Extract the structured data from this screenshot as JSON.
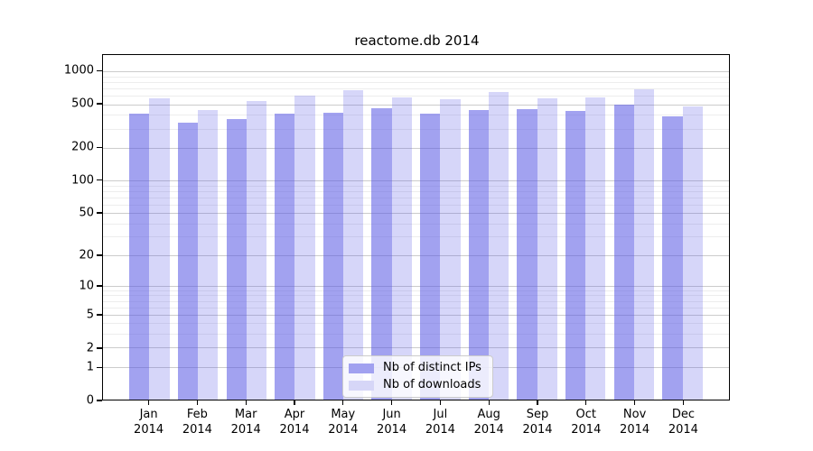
{
  "chart_data": {
    "type": "bar",
    "title": "reactome.db 2014",
    "categories": [
      "Jan",
      "Feb",
      "Mar",
      "Apr",
      "May",
      "Jun",
      "Jul",
      "Aug",
      "Sep",
      "Oct",
      "Nov",
      "Dec"
    ],
    "x_sublabel_year": "2014",
    "series": [
      {
        "name": "Nb of distinct IPs",
        "color_solid": "#a1a1f0",
        "color_fill": "rgba(85,85,228,0.55)",
        "values": [
          410,
          340,
          370,
          415,
          420,
          460,
          415,
          445,
          455,
          435,
          495,
          385
        ]
      },
      {
        "name": "Nb of downloads",
        "color_solid": "#d6d6f7",
        "color_fill": "rgba(85,85,228,0.24)",
        "values": [
          565,
          445,
          540,
          605,
          675,
          580,
          555,
          645,
          570,
          580,
          685,
          480
        ]
      }
    ],
    "y_axis": {
      "scale": "log10(value+1)",
      "tick_values": [
        0,
        1,
        2,
        5,
        10,
        20,
        50,
        100,
        200,
        500,
        1000
      ],
      "major_gridlines": [
        1,
        2,
        5,
        10,
        20,
        50,
        100,
        200,
        500,
        1000
      ],
      "minor_gridlines": [
        3,
        4,
        6,
        7,
        8,
        9,
        30,
        40,
        60,
        70,
        80,
        90,
        300,
        400,
        600,
        700,
        800,
        900
      ],
      "axis_top_value": 1416,
      "ylim": [
        0,
        1416
      ]
    },
    "legend": {
      "position": "lower-center"
    },
    "grid": true,
    "colors": {
      "major_grid": "#cccccc",
      "minor_grid": "#ededed",
      "spine": "#000000",
      "legend_bg": "rgba(255,255,255,0.8)",
      "legend_border": "#cccccc",
      "text": "#000000"
    }
  }
}
